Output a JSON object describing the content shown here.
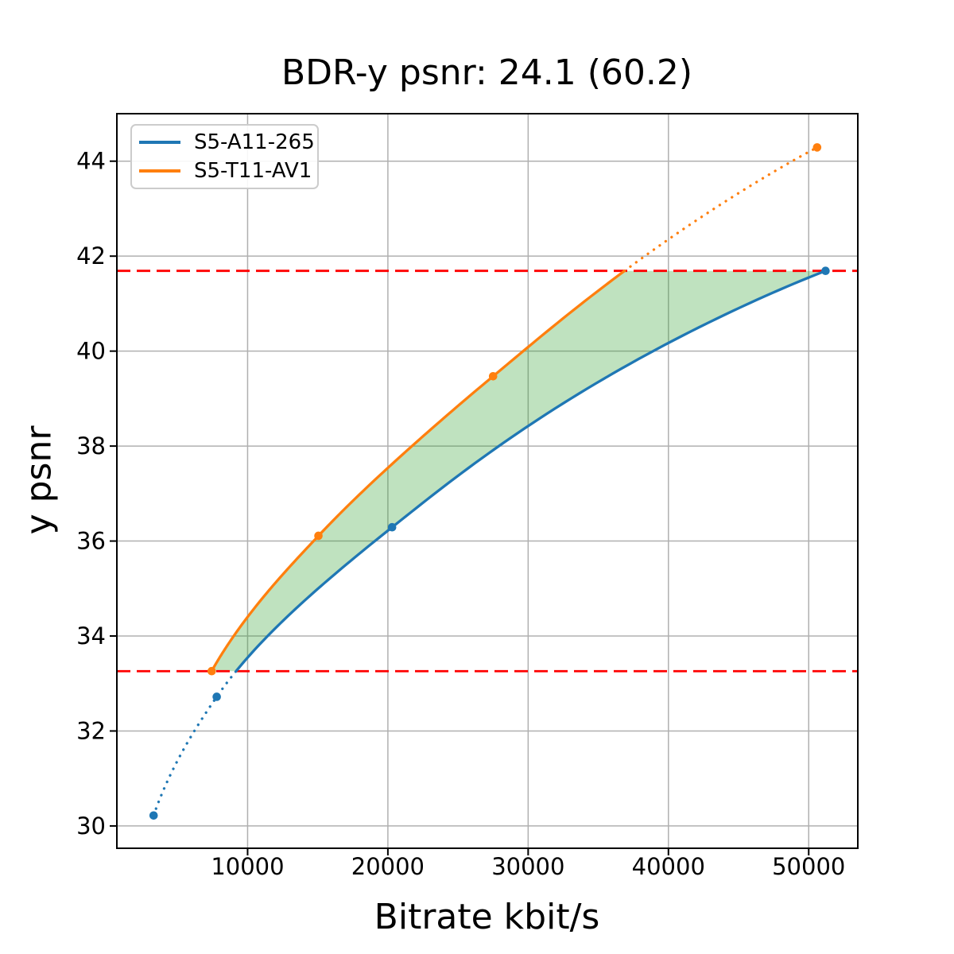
{
  "chart_data": {
    "type": "line",
    "title": "BDR-y psnr: 24.1 (60.2)",
    "xlabel": "Bitrate kbit/s",
    "ylabel": "y psnr",
    "xlim": [
      680,
      53500
    ],
    "ylim": [
      29.53,
      45.0
    ],
    "xticks": [
      10000,
      20000,
      30000,
      40000,
      50000
    ],
    "yticks": [
      30,
      32,
      34,
      36,
      38,
      40,
      42,
      44
    ],
    "grid": true,
    "legend_position": "upper left",
    "series": [
      {
        "name": "S5-A11-265",
        "color": "#1f77b4",
        "points": [
          [
            3300,
            30.22
          ],
          [
            7800,
            32.72
          ],
          [
            20300,
            36.29
          ],
          [
            51200,
            41.69
          ]
        ]
      },
      {
        "name": "S5-T11-AV1",
        "color": "#ff7f0e",
        "points": [
          [
            7440,
            33.26
          ],
          [
            15050,
            36.11
          ],
          [
            27500,
            39.47
          ],
          [
            50600,
            44.29
          ]
        ]
      }
    ],
    "bd_lines": {
      "lower": 33.26,
      "upper": 41.69,
      "color": "#ff0000",
      "style": "dashed"
    },
    "shaded_region": {
      "between": [
        "S5-T11-AV1",
        "S5-A11-265"
      ],
      "y_range": [
        33.26,
        41.69
      ],
      "color": "#2ca02c",
      "opacity": 0.3
    },
    "line_style_note": "curve segments outside bd_lines overlap range are dotted, inside are solid",
    "grid_color": "#b0b0b0"
  }
}
